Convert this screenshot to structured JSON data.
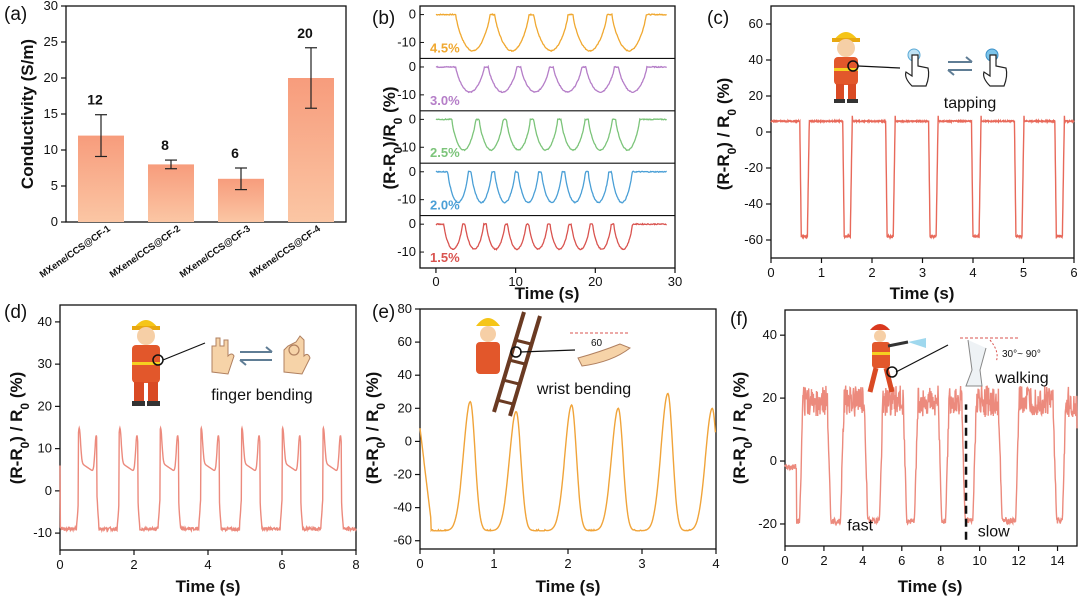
{
  "figure": {
    "panels": [
      "(a)",
      "(b)",
      "(c)",
      "(d)",
      "(e)",
      "(f)"
    ]
  },
  "chart_data": [
    {
      "panel": "(a)",
      "type": "bar",
      "title": "",
      "xlabel": "",
      "ylabel": "Conductivity (S/m)",
      "categories": [
        "MXene/CCS@CF-1",
        "MXene/CCS@CF-2",
        "MXene/CCS@CF-3",
        "MXene/CCS@CF-4"
      ],
      "values": [
        12,
        8,
        6,
        20
      ],
      "errors": [
        2.9,
        0.6,
        1.5,
        4.2
      ],
      "value_labels": [
        "12",
        "8",
        "6",
        "20"
      ],
      "ylim": [
        0,
        30
      ],
      "yticks": [
        "0",
        "5",
        "10",
        "15",
        "20",
        "25",
        "30"
      ],
      "bar_color": "#f7a584",
      "grid": false
    },
    {
      "panel": "(b)",
      "type": "line",
      "xlabel": "Time (s)",
      "ylabel": "(R-R0)/R0 (%)",
      "xlim": [
        -2,
        30
      ],
      "xticks": [
        "0",
        "10",
        "20",
        "30"
      ],
      "series": [
        {
          "name": "4.5%",
          "color": "#f0a830",
          "cycles": 5,
          "t_start": 2.5,
          "t_end": 27,
          "min": -13,
          "yticks": [
            "0",
            "-10"
          ]
        },
        {
          "name": "3.0%",
          "color": "#b57ec8",
          "cycles": 6,
          "t_start": 2.5,
          "t_end": 27,
          "min": -9,
          "yticks": [
            "0",
            "-10"
          ]
        },
        {
          "name": "2.5%",
          "color": "#7cc47a",
          "cycles": 7,
          "t_start": 2,
          "t_end": 26,
          "min": -11,
          "yticks": [
            "0",
            "-10"
          ]
        },
        {
          "name": "2.0%",
          "color": "#4a9fd6",
          "cycles": 8,
          "t_start": 1.5,
          "t_end": 25,
          "min": -11,
          "yticks": [
            "0",
            "-10"
          ]
        },
        {
          "name": "1.5%",
          "color": "#d9534f",
          "cycles": 9,
          "t_start": 1,
          "t_end": 25,
          "min": -9,
          "yticks": [
            "0",
            "-10"
          ]
        }
      ]
    },
    {
      "panel": "(c)",
      "type": "line",
      "xlabel": "Time (s)",
      "ylabel": "(R-R0) / R0 (%)",
      "xlim": [
        0,
        6
      ],
      "ylim": [
        -70,
        70
      ],
      "xticks": [
        "0",
        "1",
        "2",
        "3",
        "4",
        "5",
        "6"
      ],
      "yticks": [
        "-60",
        "-40",
        "-20",
        "0",
        "20",
        "40",
        "60"
      ],
      "annotation": "tapping",
      "color": "#e8695a",
      "baseline": 6,
      "peak": -58,
      "events": [
        0.6,
        1.45,
        2.3,
        3.15,
        4.0,
        4.85,
        5.65
      ]
    },
    {
      "panel": "(d)",
      "type": "line",
      "xlabel": "Time (s)",
      "ylabel": "(R-R0) / R0 (%)",
      "xlim": [
        0,
        8
      ],
      "ylim": [
        -14,
        44
      ],
      "xticks": [
        "0",
        "2",
        "4",
        "6",
        "8"
      ],
      "yticks": [
        "-10",
        "0",
        "10",
        "20",
        "30",
        "40"
      ],
      "annotation": "finger bending",
      "color": "#ec8a7d",
      "events": [
        0.5,
        1.6,
        2.7,
        3.8,
        4.9,
        6.0,
        7.1
      ]
    },
    {
      "panel": "(e)",
      "type": "line",
      "xlabel": "Time (s)",
      "ylabel": "(R-R0) / R0 (%)",
      "xlim": [
        0,
        4
      ],
      "ylim": [
        -65,
        80
      ],
      "xticks": [
        "0",
        "1",
        "2",
        "3",
        "4"
      ],
      "yticks": [
        "-60",
        "-40",
        "-20",
        "0",
        "20",
        "40",
        "60",
        "80"
      ],
      "annotation": "wrist bending",
      "angle_label": "60",
      "color": "#f0a43a",
      "peaks": [
        0.68,
        1.3,
        2.05,
        2.68,
        3.35,
        3.95
      ],
      "peak_values": [
        24,
        18,
        22,
        20,
        29,
        20
      ]
    },
    {
      "panel": "(f)",
      "type": "line",
      "xlabel": "Time (s)",
      "ylabel": "(R-R0) / R0 (%)",
      "xlim": [
        0,
        15
      ],
      "ylim": [
        -27,
        48
      ],
      "xticks": [
        "0",
        "2",
        "4",
        "6",
        "8",
        "10",
        "12",
        "14"
      ],
      "yticks": [
        "-20",
        "0",
        "20",
        "40"
      ],
      "annotation": "walking",
      "angle_label": "30°~ 90°",
      "region_labels": [
        "fast",
        "slow"
      ],
      "divider_x": 9.3,
      "color": "#ec8a7d"
    }
  ]
}
